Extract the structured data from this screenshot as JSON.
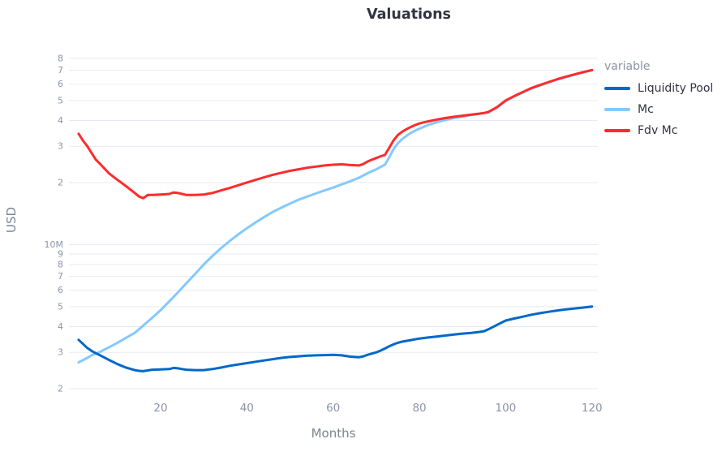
{
  "chart_data": {
    "type": "line",
    "title": "Valuations",
    "xlabel": "Months",
    "ylabel": "USD",
    "legend_title": "variable",
    "legend_position": "right",
    "grid": "horizontal-only",
    "y_scale": "log",
    "x_ticks": [
      20,
      40,
      60,
      80,
      100,
      120
    ],
    "xlim": [
      0,
      121
    ],
    "ylim_millions": [
      2,
      80
    ],
    "y_ticks_millions": [
      2,
      3,
      4,
      5,
      6,
      7,
      8,
      9,
      10,
      20,
      30,
      40,
      50,
      60,
      70,
      80
    ],
    "y_tick_labels": [
      "2",
      "3",
      "4",
      "5",
      "6",
      "7",
      "8",
      "9",
      "10M",
      "2",
      "3",
      "4",
      "5",
      "6",
      "7",
      "8"
    ],
    "colors": {
      "grid": "#e6eaf1",
      "tick_label": "#8b93a7",
      "axis_title": "#7b8494",
      "title_text": "#31333f",
      "legend_title_text": "#8b92a3",
      "legend_label_text": "#31333f"
    },
    "series": [
      {
        "name": "Liquidity Pool",
        "color": "#0068c9",
        "x": [
          1,
          2,
          3,
          4,
          5,
          6,
          8,
          10,
          12,
          14,
          15,
          16,
          17,
          18,
          20,
          22,
          23,
          24,
          25,
          26,
          28,
          30,
          32,
          34,
          36,
          38,
          40,
          42,
          44,
          46,
          48,
          50,
          52,
          54,
          56,
          58,
          60,
          62,
          64,
          66,
          67,
          68,
          69,
          70,
          71,
          72,
          73,
          74,
          75,
          76,
          78,
          80,
          82,
          84,
          86,
          88,
          90,
          92,
          94,
          95,
          96,
          98,
          100,
          102,
          104,
          106,
          108,
          110,
          112,
          114,
          116,
          118,
          120
        ],
        "y_millions": [
          3.45,
          3.3,
          3.15,
          3.05,
          2.97,
          2.9,
          2.76,
          2.63,
          2.53,
          2.46,
          2.44,
          2.43,
          2.45,
          2.47,
          2.48,
          2.49,
          2.52,
          2.51,
          2.49,
          2.47,
          2.46,
          2.46,
          2.49,
          2.53,
          2.58,
          2.62,
          2.66,
          2.7,
          2.74,
          2.78,
          2.82,
          2.85,
          2.87,
          2.89,
          2.9,
          2.91,
          2.92,
          2.9,
          2.86,
          2.84,
          2.87,
          2.92,
          2.96,
          3.0,
          3.06,
          3.13,
          3.21,
          3.28,
          3.34,
          3.38,
          3.44,
          3.5,
          3.54,
          3.58,
          3.62,
          3.66,
          3.7,
          3.73,
          3.77,
          3.8,
          3.88,
          4.08,
          4.28,
          4.38,
          4.47,
          4.57,
          4.65,
          4.72,
          4.79,
          4.85,
          4.9,
          4.95,
          5.0
        ]
      },
      {
        "name": "Mc",
        "color": "#83c9ff",
        "x": [
          1,
          2,
          3,
          4,
          6,
          8,
          10,
          12,
          14,
          16,
          18,
          20,
          22,
          24,
          26,
          28,
          30,
          32,
          34,
          36,
          38,
          40,
          42,
          44,
          46,
          48,
          50,
          52,
          54,
          56,
          58,
          60,
          62,
          64,
          66,
          68,
          70,
          71,
          72,
          73,
          74,
          75,
          76,
          77,
          78,
          79,
          80,
          82,
          84,
          86,
          88,
          90,
          92,
          94,
          96,
          98,
          100,
          102,
          104,
          106,
          108,
          110,
          112,
          114,
          116,
          118,
          120
        ],
        "y_millions": [
          2.68,
          2.75,
          2.82,
          2.9,
          3.02,
          3.17,
          3.34,
          3.53,
          3.73,
          4.05,
          4.4,
          4.8,
          5.3,
          5.85,
          6.5,
          7.2,
          8.0,
          8.8,
          9.6,
          10.4,
          11.2,
          12.0,
          12.8,
          13.6,
          14.4,
          15.1,
          15.8,
          16.5,
          17.1,
          17.7,
          18.3,
          18.9,
          19.6,
          20.3,
          21.1,
          22.2,
          23.2,
          23.8,
          24.4,
          26.5,
          29.0,
          31.0,
          32.5,
          33.7,
          34.8,
          35.7,
          36.5,
          38.0,
          39.2,
          40.2,
          41.1,
          41.8,
          42.5,
          43.1,
          43.8,
          46.2,
          49.7,
          52.3,
          54.7,
          57.2,
          59.2,
          61.2,
          63.2,
          65.0,
          66.7,
          68.4,
          70.0
        ]
      },
      {
        "name": "Fdv Mc",
        "color": "#ff2b2b",
        "x": [
          1,
          2,
          3,
          4,
          5,
          6,
          8,
          10,
          12,
          14,
          15,
          16,
          17,
          18,
          20,
          22,
          23,
          24,
          25,
          26,
          28,
          30,
          32,
          34,
          36,
          38,
          40,
          42,
          44,
          46,
          48,
          50,
          52,
          54,
          56,
          58,
          60,
          62,
          64,
          66,
          67,
          68,
          69,
          70,
          71,
          72,
          73,
          74,
          75,
          76,
          77,
          78,
          79,
          80,
          82,
          84,
          86,
          88,
          90,
          92,
          94,
          95,
          96,
          98,
          100,
          102,
          104,
          106,
          108,
          110,
          112,
          114,
          116,
          118,
          120
        ],
        "y_millions": [
          34.5,
          32.0,
          30.0,
          27.8,
          25.8,
          24.6,
          22.2,
          20.6,
          19.2,
          17.8,
          17.1,
          16.8,
          17.4,
          17.4,
          17.5,
          17.6,
          17.9,
          17.8,
          17.6,
          17.4,
          17.4,
          17.5,
          17.8,
          18.3,
          18.8,
          19.4,
          20.0,
          20.6,
          21.2,
          21.8,
          22.3,
          22.8,
          23.2,
          23.6,
          23.9,
          24.2,
          24.4,
          24.5,
          24.3,
          24.2,
          24.6,
          25.3,
          25.8,
          26.3,
          26.8,
          27.2,
          29.5,
          32.0,
          34.0,
          35.3,
          36.3,
          37.2,
          38.0,
          38.7,
          39.6,
          40.4,
          41.1,
          41.7,
          42.2,
          42.7,
          43.2,
          43.5,
          44.0,
          46.5,
          50.0,
          52.6,
          55.0,
          57.5,
          59.5,
          61.5,
          63.5,
          65.3,
          67.0,
          68.7,
          70.3
        ]
      }
    ]
  }
}
